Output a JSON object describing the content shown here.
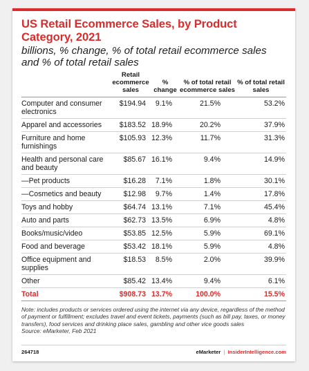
{
  "chart_data": {
    "type": "table",
    "title": "US Retail Ecommerce Sales, by Product Category, 2021",
    "subtitle": "billions, % change, % of total retail ecommerce sales and % of total retail sales",
    "columns": [
      "",
      "Retail ecommerce sales",
      "% change",
      "% of total retail ecommerce sales",
      "% of total retail sales"
    ],
    "rows": [
      [
        "Computer and consumer electronics",
        "$194.94",
        "9.1%",
        "21.5%",
        "53.2%"
      ],
      [
        "Apparel and accessories",
        "$183.52",
        "18.9%",
        "20.2%",
        "37.9%"
      ],
      [
        "Furniture and home furnishings",
        "$105.93",
        "12.3%",
        "11.7%",
        "31.3%"
      ],
      [
        "Health and personal care and beauty",
        "$85.67",
        "16.1%",
        "9.4%",
        "14.9%"
      ],
      [
        "—Pet products",
        "$16.28",
        "7.1%",
        "1.8%",
        "30.1%"
      ],
      [
        "—Cosmetics and beauty",
        "$12.98",
        "9.7%",
        "1.4%",
        "17.8%"
      ],
      [
        "Toys and hobby",
        "$64.74",
        "13.1%",
        "7.1%",
        "45.4%"
      ],
      [
        "Auto and parts",
        "$62.73",
        "13.5%",
        "6.9%",
        "4.8%"
      ],
      [
        "Books/music/video",
        "$53.85",
        "12.5%",
        "5.9%",
        "69.1%"
      ],
      [
        "Food and beverage",
        "$53.42",
        "18.1%",
        "5.9%",
        "4.8%"
      ],
      [
        "Office equipment and supplies",
        "$18.53",
        "8.5%",
        "2.0%",
        "39.9%"
      ],
      [
        "Other",
        "$85.42",
        "13.4%",
        "9.4%",
        "6.1%"
      ]
    ],
    "total": [
      "Total",
      "$908.73",
      "13.7%",
      "100.0%",
      "15.5%"
    ]
  },
  "note": "Note: includes products or services ordered using the internet via any device, regardless of the method of payment or fulfillment; excludes travel and event tickets, payments (such as bill pay, taxes, or money transfers), food services and drinking place sales, gambling and other vice goods sales",
  "source": "Source: eMarketer, Feb 2021",
  "footer": {
    "id": "264718",
    "brand1": "eMarketer",
    "sep": "|",
    "brand2": "InsiderIntelligence.com"
  },
  "colors": {
    "accent": "#d92c2c"
  }
}
